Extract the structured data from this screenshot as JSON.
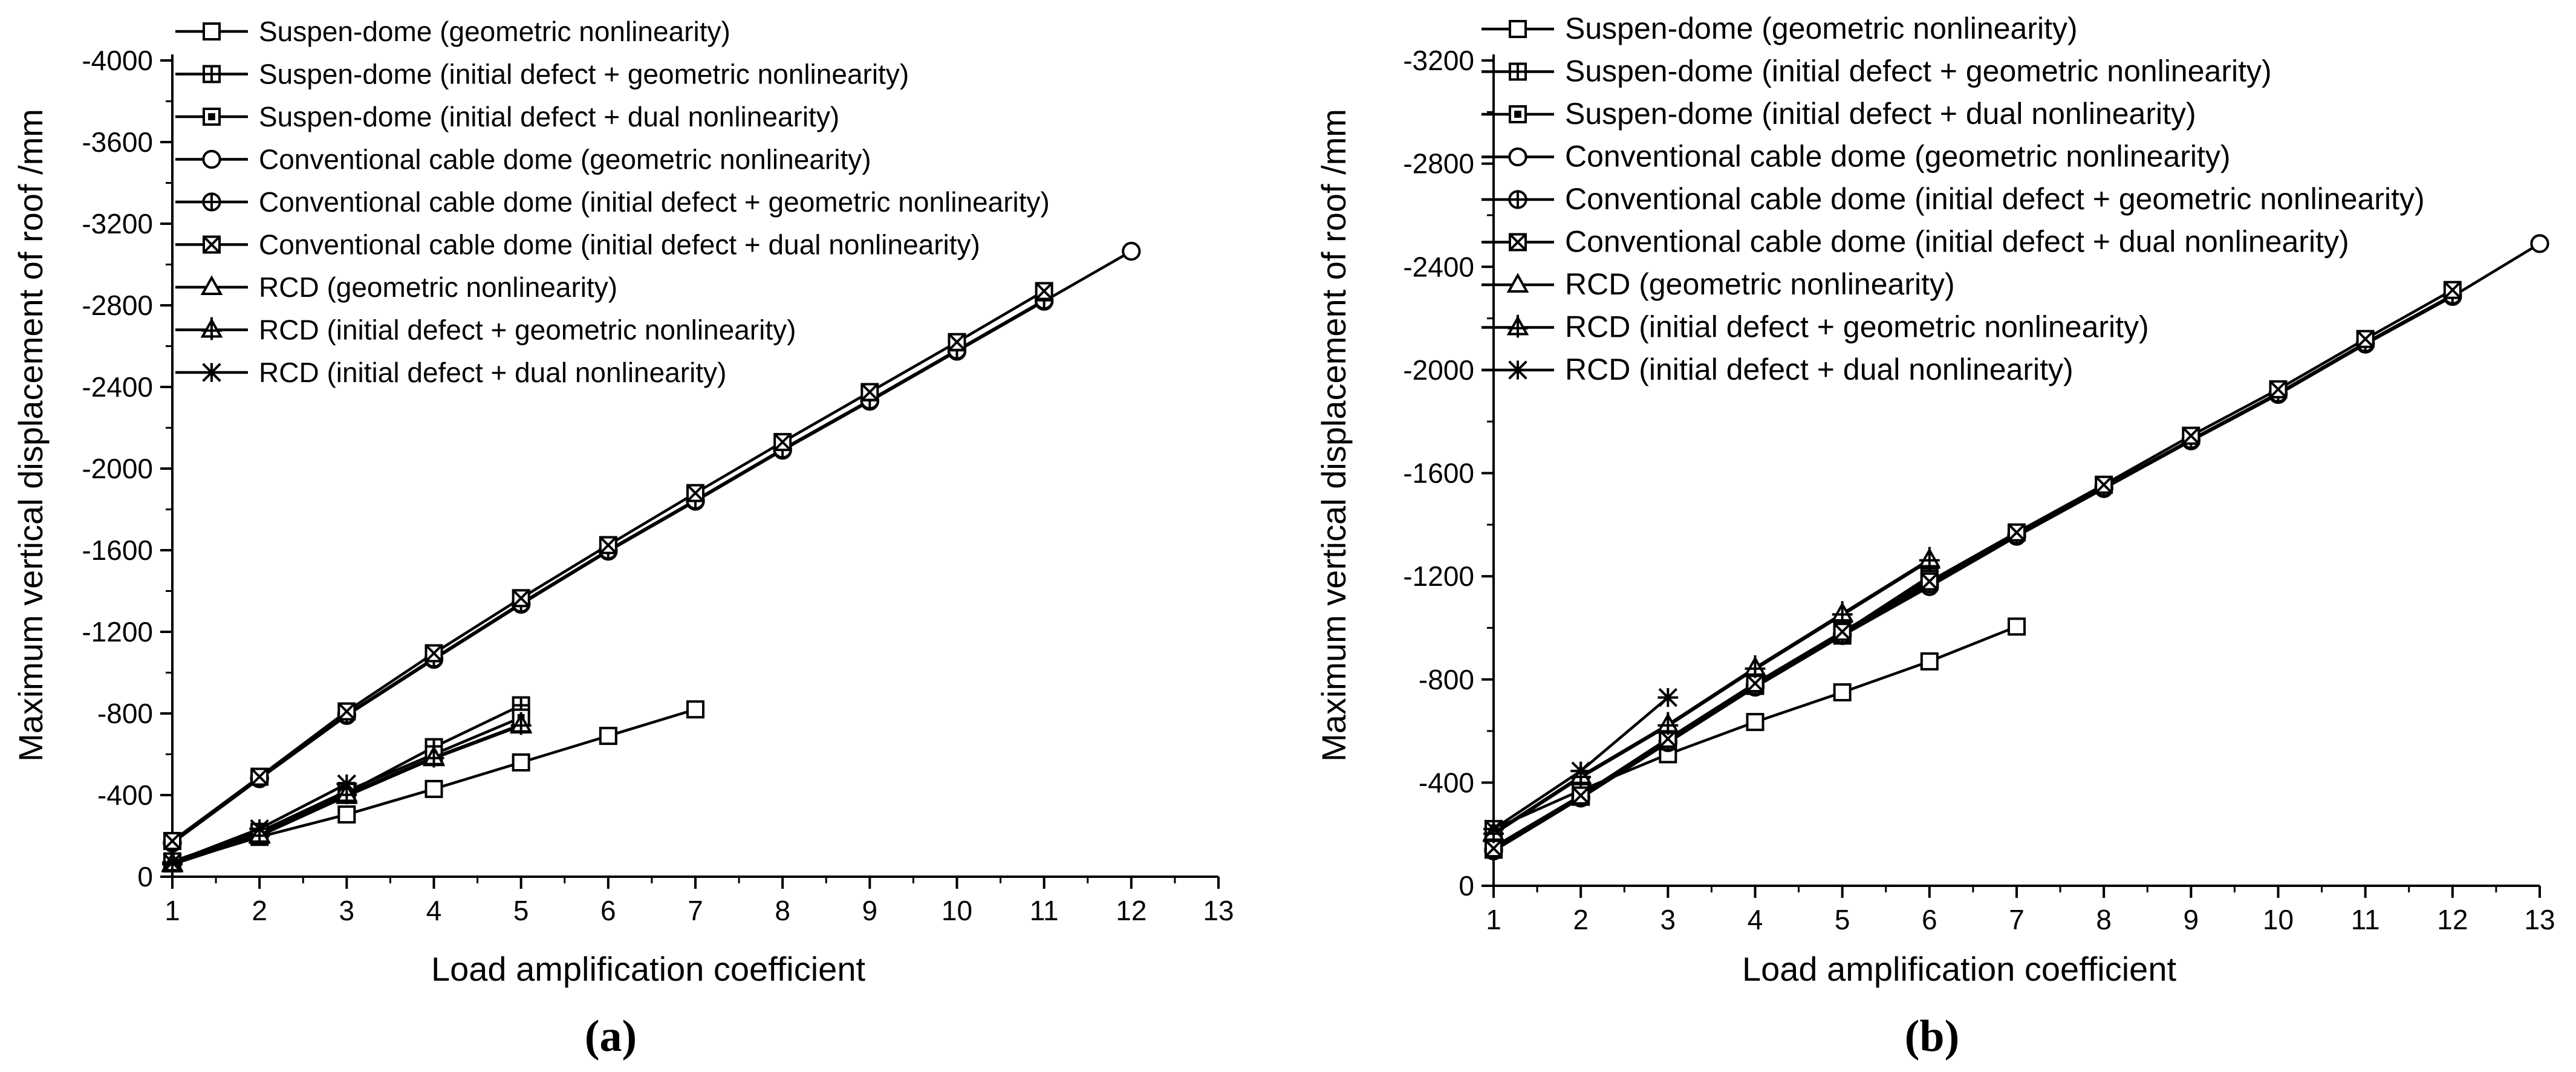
{
  "chart_data": [
    {
      "type": "line",
      "panel_label": "(a)",
      "xlabel": "Load amplification coefficient",
      "ylabel": "Maximum vertical displacement of roof /mm",
      "xlim": [
        1,
        13
      ],
      "ylim": [
        0,
        -4000
      ],
      "xticks": [
        1,
        2,
        3,
        4,
        5,
        6,
        7,
        8,
        9,
        10,
        11,
        12,
        13
      ],
      "yticks": [
        0,
        -400,
        -800,
        -1200,
        -1600,
        -2000,
        -2400,
        -2800,
        -3200,
        -3600,
        -4000
      ],
      "ytick_labels": [
        "0",
        "-400",
        "-800",
        "-1200",
        "-1600",
        "-2000",
        "-2400",
        "-2800",
        "-3200",
        "-3600",
        "-4000"
      ],
      "legend_position": "top-left",
      "series": [
        {
          "name": "Suspen-dome (geometric nonlinearity)",
          "marker": "square",
          "x": [
            1,
            2,
            3,
            4,
            5,
            6,
            7
          ],
          "y": [
            -65,
            -195,
            -305,
            -430,
            -560,
            -690,
            -820
          ]
        },
        {
          "name": "Suspen-dome (initial defect + geometric nonlinearity)",
          "marker": "square-plus",
          "x": [
            1,
            2,
            3,
            4,
            5
          ],
          "y": [
            -70,
            -215,
            -410,
            -635,
            -840
          ]
        },
        {
          "name": "Suspen-dome (initial defect + dual nonlinearity)",
          "marker": "square-dot",
          "x": [
            1,
            2,
            3,
            4,
            5
          ],
          "y": [
            -75,
            -220,
            -420,
            -600,
            -780
          ]
        },
        {
          "name": "Conventional cable dome (geometric nonlinearity)",
          "marker": "circle",
          "x": [
            1,
            2,
            3,
            4,
            5,
            6,
            7,
            8,
            9,
            10,
            11,
            12
          ],
          "y": [
            -165,
            -480,
            -790,
            -1065,
            -1335,
            -1595,
            -1840,
            -2090,
            -2330,
            -2575,
            -2820,
            -3065
          ]
        },
        {
          "name": "Conventional cable dome (initial defect + geometric nonlinearity)",
          "marker": "circle-plus",
          "x": [
            1,
            2,
            3,
            4,
            5,
            6,
            7,
            8,
            9,
            10,
            11
          ],
          "y": [
            -168,
            -485,
            -795,
            -1070,
            -1340,
            -1600,
            -1845,
            -2095,
            -2335,
            -2580,
            -2825
          ]
        },
        {
          "name": "Conventional cable dome (initial defect + dual nonlinearity)",
          "marker": "square-x",
          "x": [
            1,
            2,
            3,
            4,
            5,
            6,
            7,
            8,
            9,
            10,
            11
          ],
          "y": [
            -175,
            -490,
            -810,
            -1095,
            -1365,
            -1625,
            -1880,
            -2130,
            -2375,
            -2620,
            -2870
          ]
        },
        {
          "name": "RCD (geometric nonlinearity)",
          "marker": "triangle",
          "x": [
            1,
            2,
            3,
            4,
            5
          ],
          "y": [
            -60,
            -200,
            -395,
            -580,
            -740
          ]
        },
        {
          "name": "RCD (initial defect + geometric nonlinearity)",
          "marker": "triangle-plus",
          "x": [
            1,
            2,
            3,
            4,
            5
          ],
          "y": [
            -65,
            -205,
            -405,
            -585,
            -745
          ]
        },
        {
          "name": "RCD (initial defect + dual nonlinearity)",
          "marker": "asterisk",
          "x": [
            1,
            2,
            3
          ],
          "y": [
            -70,
            -235,
            -455
          ]
        }
      ]
    },
    {
      "type": "line",
      "panel_label": "(b)",
      "xlabel": "Load amplification coefficient",
      "ylabel": "Maximum vertical displacement of roof /mm",
      "xlim": [
        1,
        13
      ],
      "ylim": [
        0,
        -3200
      ],
      "xticks": [
        1,
        2,
        3,
        4,
        5,
        6,
        7,
        8,
        9,
        10,
        11,
        12,
        13
      ],
      "yticks": [
        0,
        -400,
        -800,
        -1200,
        -1600,
        -2000,
        -2400,
        -2800,
        -3200
      ],
      "ytick_labels": [
        "0",
        "-400",
        "-800",
        "-1200",
        "-1600",
        "-2000",
        "-2400",
        "-2800",
        "-3200"
      ],
      "legend_position": "top-left",
      "series": [
        {
          "name": "Suspen-dome (geometric nonlinearity)",
          "marker": "square",
          "x": [
            1,
            2,
            3,
            4,
            5,
            6,
            7
          ],
          "y": [
            -220,
            -370,
            -510,
            -635,
            -750,
            -870,
            -1005
          ]
        },
        {
          "name": "Suspen-dome (initial defect + geometric nonlinearity)",
          "marker": "square-plus",
          "x": [
            1,
            2,
            3,
            4,
            5,
            6
          ],
          "y": [
            -150,
            -350,
            -570,
            -780,
            -980,
            -1200
          ]
        },
        {
          "name": "Suspen-dome (initial defect + dual nonlinearity)",
          "marker": "square-dot",
          "x": [
            1,
            2,
            3,
            4,
            5,
            6
          ],
          "y": [
            -140,
            -345,
            -560,
            -775,
            -970,
            -1190
          ]
        },
        {
          "name": "Conventional cable dome (geometric nonlinearity)",
          "marker": "circle",
          "x": [
            1,
            2,
            3,
            4,
            5,
            6,
            7,
            8,
            9,
            10,
            11,
            12,
            13
          ],
          "y": [
            -135,
            -340,
            -555,
            -770,
            -970,
            -1160,
            -1355,
            -1540,
            -1725,
            -1905,
            -2100,
            -2285,
            -2490
          ]
        },
        {
          "name": "Conventional cable dome (initial defect + geometric nonlinearity)",
          "marker": "circle-plus",
          "x": [
            1,
            2,
            3,
            4,
            5,
            6,
            7,
            8,
            9,
            10,
            11,
            12
          ],
          "y": [
            -140,
            -345,
            -560,
            -775,
            -975,
            -1170,
            -1360,
            -1545,
            -1730,
            -1910,
            -2105,
            -2290
          ]
        },
        {
          "name": "Conventional cable dome (initial defect + dual nonlinearity)",
          "marker": "square-x",
          "x": [
            1,
            2,
            3,
            4,
            5,
            6,
            7,
            8,
            9,
            10,
            11,
            12
          ],
          "y": [
            -145,
            -350,
            -570,
            -785,
            -985,
            -1180,
            -1370,
            -1555,
            -1745,
            -1925,
            -2120,
            -2310
          ]
        },
        {
          "name": "RCD (geometric nonlinearity)",
          "marker": "triangle",
          "x": [
            1,
            2,
            3,
            4,
            5,
            6
          ],
          "y": [
            -200,
            -420,
            -620,
            -840,
            -1050,
            -1260
          ]
        },
        {
          "name": "RCD (initial defect + geometric nonlinearity)",
          "marker": "triangle-plus",
          "x": [
            1,
            2,
            3,
            4,
            5,
            6
          ],
          "y": [
            -205,
            -425,
            -625,
            -845,
            -1055,
            -1265
          ]
        },
        {
          "name": "RCD (initial defect + dual nonlinearity)",
          "marker": "asterisk",
          "x": [
            1,
            2,
            3
          ],
          "y": [
            -220,
            -445,
            -730
          ]
        }
      ]
    }
  ]
}
